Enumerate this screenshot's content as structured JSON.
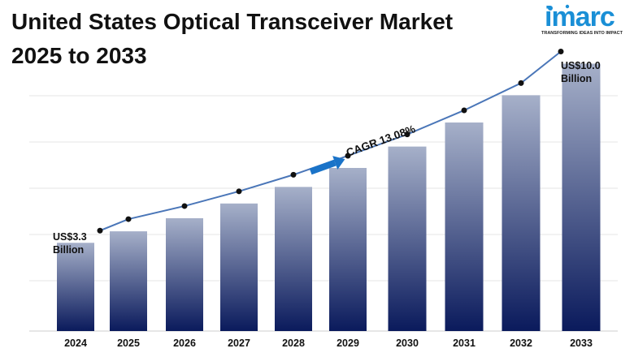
{
  "header": {
    "title_line1": "United States Optical Transceiver Market",
    "title_line2": "2025 to 2033"
  },
  "logo": {
    "brand": "imarc",
    "tagline": "TRANSFORMING IDEAS INTO IMPACT",
    "color": "#1a8fd6"
  },
  "chart_data": {
    "type": "bar",
    "categories": [
      "2024",
      "2025",
      "2026",
      "2027",
      "2028",
      "2029",
      "2030",
      "2031",
      "2032",
      "2033"
    ],
    "values": [
      3.3,
      3.73,
      4.22,
      4.77,
      5.39,
      6.1,
      6.9,
      7.8,
      8.82,
      10.0
    ],
    "unit": "US$ Billion",
    "ylim": [
      0,
      10.5
    ],
    "grid": true,
    "trend_line": true,
    "bar_gradient": [
      "#a6b0c9",
      "#0a1a5c"
    ],
    "line_color": "#4a76b8",
    "annotations": [
      {
        "index": 0,
        "lines": [
          "US$3.3",
          "Billion"
        ]
      },
      {
        "index": 9,
        "lines": [
          "US$10.0",
          "Billion"
        ]
      }
    ],
    "cagr_label": "CAGR 13.08%",
    "arrow_color": "#1a73c8"
  }
}
